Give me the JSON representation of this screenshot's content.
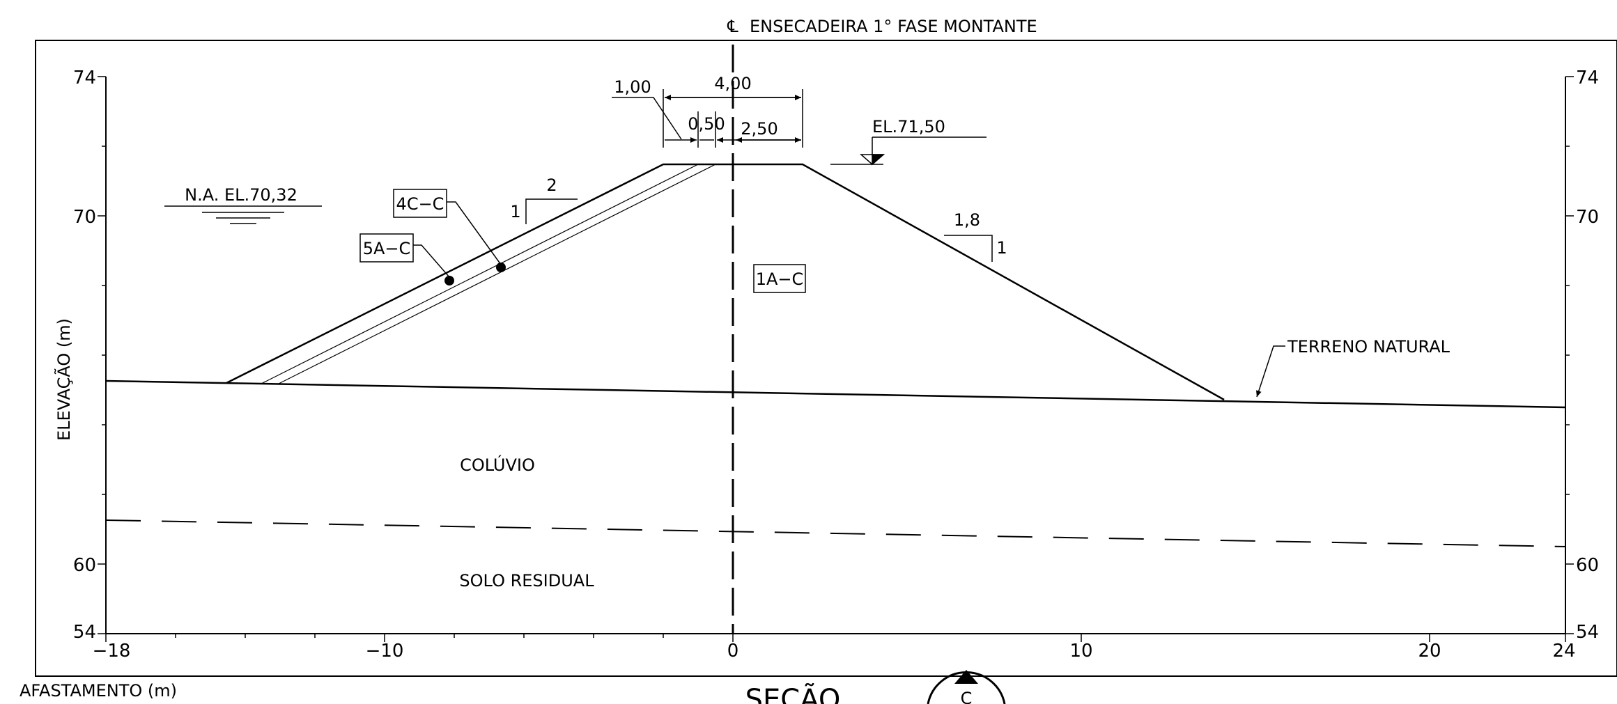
{
  "title": {
    "centerline_symbol": "℄",
    "text": "ENSECADEIRA 1° FASE MONTANTE"
  },
  "axes": {
    "ylabel": "ELEVAÇÃO (m)",
    "xlabel": "AFASTAMENTO (m)",
    "x_ticks": [
      "−18",
      "−10",
      "0",
      "10",
      "20",
      "24"
    ],
    "y_ticks_left": [
      "74",
      "70",
      "60",
      "54"
    ],
    "y_ticks_right": [
      "74",
      "70",
      "60",
      "54"
    ]
  },
  "water_level": {
    "label": "N.A. EL.70,32"
  },
  "crest": {
    "elevation_label": "EL.71,50",
    "dim_total": "4,00",
    "dim_upstream": "1,00",
    "dim_mid": "0,50",
    "dim_downstream": "2,50"
  },
  "slopes": {
    "upstream_h": "2",
    "upstream_v": "1",
    "downstream_h": "1,8",
    "downstream_v": "1"
  },
  "materials": {
    "m1": "4C−C",
    "m2": "5A−C",
    "m3": "1A−C",
    "coluvio": "COLÚVIO",
    "solo_residual": "SOLO RESIDUAL"
  },
  "terrain": {
    "label": "TERRENO NATURAL"
  },
  "footer": {
    "section_text": "SEÇÃO",
    "section_letter": "C"
  }
}
